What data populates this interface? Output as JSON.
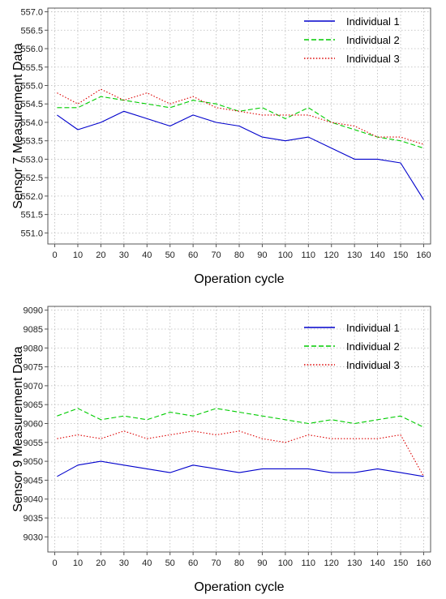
{
  "chart_data": [
    {
      "type": "line",
      "xlabel": "Operation cycle",
      "ylabel": "Sensor 7 Measurement Data",
      "xlim": [
        -3,
        163
      ],
      "ylim": [
        550.7,
        557.1
      ],
      "xticks": [
        0,
        10,
        20,
        30,
        40,
        50,
        60,
        70,
        80,
        90,
        100,
        110,
        120,
        130,
        140,
        150,
        160
      ],
      "yticks": [
        551.0,
        551.5,
        552.0,
        552.5,
        553.0,
        553.5,
        554.0,
        554.5,
        555.0,
        555.5,
        556.0,
        556.5,
        557.0
      ],
      "ytick_decimals": 1,
      "grid": true,
      "legend_position": "top-right",
      "x": [
        1,
        10,
        20,
        30,
        40,
        50,
        60,
        70,
        80,
        90,
        100,
        110,
        120,
        130,
        140,
        150,
        160
      ],
      "series": [
        {
          "name": "Individual 1",
          "color": "#0000cc",
          "style": "solid",
          "values": [
            554.2,
            553.8,
            554.0,
            554.3,
            554.1,
            553.9,
            554.2,
            554.0,
            553.9,
            553.6,
            553.5,
            553.6,
            553.3,
            553.0,
            553.0,
            552.9,
            551.9
          ]
        },
        {
          "name": "Individual 2",
          "color": "#00cc00",
          "style": "dashed",
          "values": [
            554.4,
            554.4,
            554.7,
            554.6,
            554.5,
            554.4,
            554.6,
            554.5,
            554.3,
            554.4,
            554.1,
            554.4,
            554.0,
            553.8,
            553.6,
            553.5,
            553.3
          ]
        },
        {
          "name": "Individual 3",
          "color": "#dd0000",
          "style": "dotted",
          "values": [
            554.8,
            554.5,
            554.9,
            554.6,
            554.8,
            554.5,
            554.7,
            554.4,
            554.3,
            554.2,
            554.2,
            554.2,
            554.0,
            553.9,
            553.6,
            553.6,
            553.4
          ]
        }
      ]
    },
    {
      "type": "line",
      "xlabel": "Operation cycle",
      "ylabel": "Sensor 9 Measurement Data",
      "xlim": [
        -3,
        163
      ],
      "ylim": [
        9026,
        9091
      ],
      "xticks": [
        0,
        10,
        20,
        30,
        40,
        50,
        60,
        70,
        80,
        90,
        100,
        110,
        120,
        130,
        140,
        150,
        160
      ],
      "yticks": [
        9030,
        9035,
        9040,
        9045,
        9050,
        9055,
        9060,
        9065,
        9070,
        9075,
        9080,
        9085,
        9090
      ],
      "ytick_decimals": 0,
      "grid": true,
      "legend_position": "top-right",
      "x": [
        1,
        10,
        20,
        30,
        40,
        50,
        60,
        70,
        80,
        90,
        100,
        110,
        120,
        130,
        140,
        150,
        160
      ],
      "series": [
        {
          "name": "Individual 1",
          "color": "#0000cc",
          "style": "solid",
          "values": [
            9046,
            9049,
            9050,
            9049,
            9048,
            9047,
            9049,
            9048,
            9047,
            9048,
            9048,
            9048,
            9047,
            9047,
            9048,
            9047,
            9046
          ]
        },
        {
          "name": "Individual 2",
          "color": "#00cc00",
          "style": "dashed",
          "values": [
            9062,
            9064,
            9061,
            9062,
            9061,
            9063,
            9062,
            9064,
            9063,
            9062,
            9061,
            9060,
            9061,
            9060,
            9061,
            9062,
            9059
          ]
        },
        {
          "name": "Individual 3",
          "color": "#dd0000",
          "style": "dotted",
          "values": [
            9056,
            9057,
            9056,
            9058,
            9056,
            9057,
            9058,
            9057,
            9058,
            9056,
            9055,
            9057,
            9056,
            9056,
            9056,
            9057,
            9046
          ]
        }
      ]
    }
  ]
}
